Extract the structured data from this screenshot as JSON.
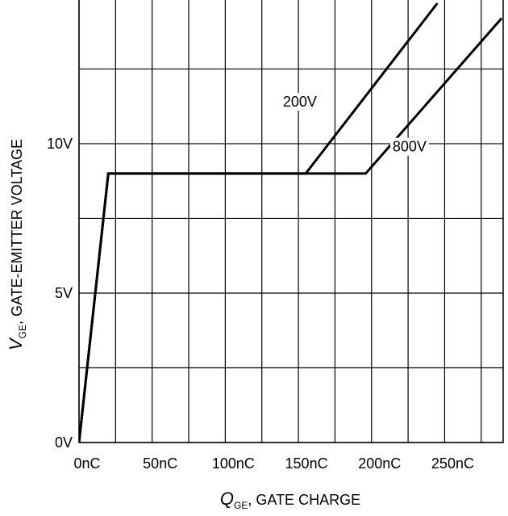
{
  "chart_data": {
    "type": "line",
    "title": "",
    "xlabel": {
      "symbol": "Q",
      "subscript": "GE",
      "text": ", GATE CHARGE"
    },
    "ylabel": {
      "symbol": "V",
      "subscript": "GE",
      "text": ",  GATE-EMITTER VOLTAGE"
    },
    "xlim": [
      0,
      290
    ],
    "ylim": [
      0,
      14.7
    ],
    "x_unit": "nC",
    "y_unit": "V",
    "x_gridlines": [
      0,
      25,
      50,
      75,
      100,
      125,
      150,
      175,
      200,
      225,
      250,
      275
    ],
    "y_gridlines": [
      0,
      2.5,
      5,
      7.5,
      10,
      12.5
    ],
    "x_ticks": [
      {
        "value": 0,
        "label": "0nC"
      },
      {
        "value": 50,
        "label": "50nC"
      },
      {
        "value": 100,
        "label": "100nC"
      },
      {
        "value": 150,
        "label": "150nC"
      },
      {
        "value": 200,
        "label": "200nC"
      },
      {
        "value": 250,
        "label": "250nC"
      }
    ],
    "y_ticks": [
      {
        "value": 0,
        "label": "0V"
      },
      {
        "value": 5,
        "label": "5V"
      },
      {
        "value": 10,
        "label": "10V"
      }
    ],
    "grid": true,
    "series": [
      {
        "name": "200V",
        "x": [
          0,
          20,
          155,
          245
        ],
        "y": [
          0,
          9,
          9,
          14.7
        ]
      },
      {
        "name": "800V",
        "x": [
          0,
          20,
          196,
          289
        ],
        "y": [
          0,
          9,
          9,
          14.2
        ]
      }
    ],
    "annotations": [
      {
        "text": "200V",
        "x": 151,
        "y": 11.4
      },
      {
        "text": "800V",
        "x": 226,
        "y": 9.9
      }
    ]
  }
}
